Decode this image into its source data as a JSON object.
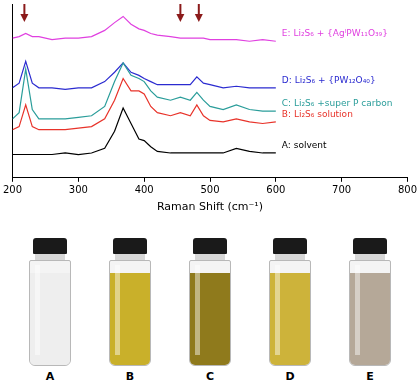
{
  "chart_data": {
    "type": "line",
    "xlabel": "Raman Shift (cm⁻¹)",
    "x": [
      200,
      210,
      220,
      230,
      240,
      260,
      280,
      300,
      320,
      340,
      355,
      368,
      380,
      392,
      400,
      410,
      420,
      440,
      455,
      470,
      480,
      490,
      500,
      520,
      540,
      560,
      580,
      600
    ],
    "series": [
      {
        "name": "A: solvent",
        "color": "#000000",
        "values": [
          15,
          15,
          15,
          15,
          15,
          15,
          16,
          15,
          16,
          19,
          30,
          45,
          35,
          25,
          24,
          20,
          17,
          16,
          16,
          16,
          16,
          16,
          16,
          16,
          19,
          17,
          16,
          16
        ]
      },
      {
        "name": "B: Li₂S₆ solution",
        "color": "#e8332a",
        "values": [
          31,
          33,
          47,
          33,
          31,
          31,
          31,
          32,
          33,
          38,
          50,
          64,
          56,
          56,
          54,
          46,
          42,
          40,
          42,
          40,
          47,
          40,
          37,
          36,
          38,
          36,
          35,
          36
        ]
      },
      {
        "name": "C: Li₂S₆ +super P carbon",
        "color": "#2a9d9a",
        "values": [
          38,
          42,
          70,
          44,
          38,
          38,
          38,
          39,
          40,
          46,
          62,
          74,
          66,
          64,
          62,
          56,
          52,
          50,
          52,
          50,
          55,
          50,
          46,
          44,
          47,
          44,
          43,
          43
        ]
      },
      {
        "name": "D: Li₂S₆ + {PW₁₂O₄₀}",
        "color": "#2b2bd0",
        "values": [
          58,
          61,
          75,
          61,
          58,
          58,
          57,
          58,
          58,
          62,
          68,
          74,
          68,
          66,
          64,
          62,
          60,
          60,
          60,
          60,
          65,
          61,
          60,
          58,
          59,
          58,
          58,
          58
        ]
      },
      {
        "name": "E: Li₂S₆ + {AgᴵPW₁₁O₃₉}",
        "color": "#e040e0",
        "values": [
          90,
          91,
          93,
          91,
          91,
          89,
          90,
          90,
          91,
          95,
          100,
          104,
          99,
          96,
          95,
          93,
          92,
          91,
          90,
          90,
          90,
          90,
          89,
          89,
          89,
          88,
          89,
          88
        ]
      }
    ],
    "arrows": [
      218,
      455,
      483
    ],
    "xlim": [
      200,
      800
    ],
    "xticks": [
      200,
      300,
      400,
      500,
      600,
      700,
      800
    ],
    "ylim": [
      0,
      112
    ],
    "yticks": [],
    "tick_labels": "x",
    "grid": false
  },
  "photos": [
    {
      "label": "A",
      "color": "#eeeeee"
    },
    {
      "label": "B",
      "color": "#c9b02a"
    },
    {
      "label": "C",
      "color": "#8f7a1c"
    },
    {
      "label": "D",
      "color": "#cdb33a"
    },
    {
      "label": "E",
      "color": "#b5a898"
    }
  ]
}
